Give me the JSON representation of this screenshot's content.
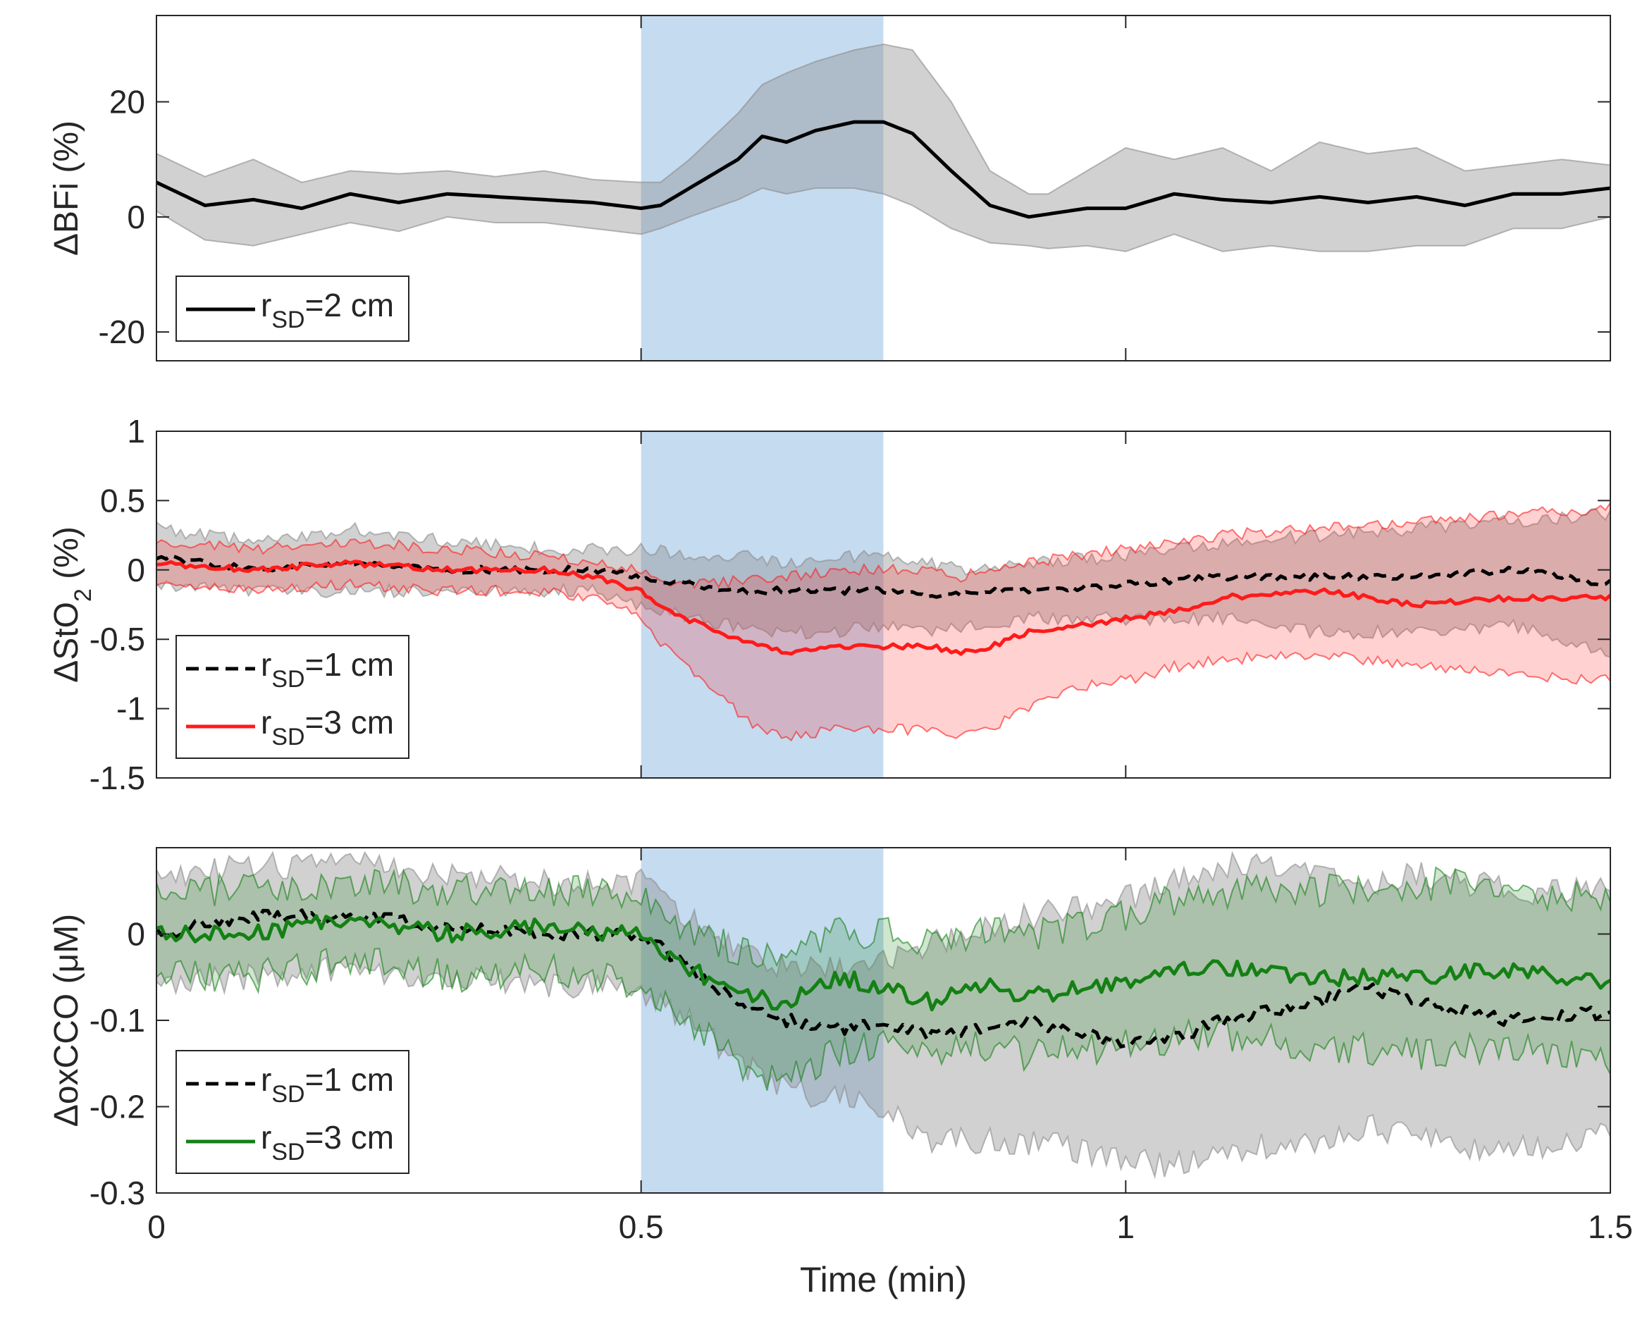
{
  "figure": {
    "xlabel": "Time (min)",
    "xticks": [
      "0",
      "0.5",
      "1",
      "1.5"
    ]
  },
  "colors": {
    "shade": "#c5dbf0",
    "black": "#000000",
    "red": "#ff1a1a",
    "green": "#148014",
    "gray_band": "#8c8c8c"
  },
  "chart_data": [
    {
      "type": "line",
      "id": "bfi",
      "ylabel": "ΔBFi (%)",
      "xlim": [
        0,
        1.5
      ],
      "ylim": [
        -25,
        35
      ],
      "yticks": [
        "20",
        "0",
        "-20"
      ],
      "ytick_values": [
        20,
        0,
        -20
      ],
      "stimulus_window": [
        0.5,
        0.75
      ],
      "legend": [
        {
          "label": "r",
          "sub": "SD",
          "suffix": "=2 cm",
          "style": "solid",
          "color": "black"
        }
      ],
      "series": [
        {
          "name": "r_SD=2 cm",
          "color": "black",
          "band_color": "gray_band",
          "style": "solid",
          "noise": 0,
          "seed": 1,
          "x": [
            0,
            0.05,
            0.1,
            0.15,
            0.2,
            0.25,
            0.3,
            0.35,
            0.4,
            0.45,
            0.5,
            0.52,
            0.55,
            0.6,
            0.625,
            0.65,
            0.68,
            0.72,
            0.75,
            0.78,
            0.82,
            0.86,
            0.9,
            0.92,
            0.96,
            1.0,
            1.05,
            1.1,
            1.15,
            1.2,
            1.25,
            1.3,
            1.35,
            1.4,
            1.45,
            1.5
          ],
          "mean": [
            6,
            2,
            3,
            1.5,
            4,
            2.5,
            4,
            3.5,
            3,
            2.5,
            1.5,
            2,
            5,
            10,
            14,
            13,
            15,
            16.5,
            16.5,
            14.5,
            8,
            2,
            0,
            0.5,
            1.5,
            1.5,
            4,
            3,
            2.5,
            3.5,
            2.5,
            3.5,
            2,
            4,
            4,
            5
          ],
          "upper": [
            11,
            7,
            10,
            6,
            8,
            7.5,
            8,
            7,
            8,
            6.5,
            6,
            6,
            10,
            18,
            23,
            25,
            27,
            29,
            30,
            29,
            20,
            8,
            4,
            4,
            8,
            12,
            10,
            12,
            8,
            13,
            11,
            12,
            8,
            9,
            10,
            9
          ],
          "lower": [
            1,
            -4,
            -5,
            -3,
            -1,
            -2.5,
            0,
            -1,
            -1,
            -2,
            -3,
            -2,
            0,
            3,
            5,
            4,
            5,
            5,
            4,
            2,
            -2,
            -4.5,
            -5,
            -5.5,
            -5,
            -6,
            -3,
            -6,
            -5,
            -6,
            -6,
            -5,
            -5,
            -2,
            -2,
            0
          ]
        }
      ]
    },
    {
      "type": "line",
      "id": "sto2",
      "ylabel": "ΔStO2 (%)",
      "xlim": [
        0,
        1.5
      ],
      "ylim": [
        -1.5,
        1
      ],
      "yticks": [
        "1",
        "0.5",
        "0",
        "-0.5",
        "-1",
        "-1.5"
      ],
      "ytick_values": [
        1,
        0.5,
        0,
        -0.5,
        -1,
        -1.5
      ],
      "stimulus_window": [
        0.5,
        0.75
      ],
      "legend": [
        {
          "label": "r",
          "sub": "SD",
          "suffix": "=1 cm",
          "style": "dashed",
          "color": "black"
        },
        {
          "label": "r",
          "sub": "SD",
          "suffix": "=3 cm",
          "style": "solid",
          "color": "red"
        }
      ],
      "series": [
        {
          "name": "r_SD=1 cm",
          "color": "black",
          "band_color": "gray_band",
          "style": "dashed",
          "noise": 0.025,
          "seed": 7,
          "x": [
            0,
            0.1,
            0.2,
            0.3,
            0.4,
            0.45,
            0.5,
            0.55,
            0.6,
            0.65,
            0.7,
            0.75,
            0.8,
            0.85,
            0.9,
            1.0,
            1.1,
            1.2,
            1.3,
            1.4,
            1.5
          ],
          "mean": [
            0.1,
            0.0,
            0.05,
            0.0,
            0.0,
            0.0,
            -0.05,
            -0.1,
            -0.15,
            -0.15,
            -0.15,
            -0.15,
            -0.2,
            -0.15,
            -0.15,
            -0.1,
            -0.05,
            -0.05,
            -0.05,
            0.0,
            -0.1
          ],
          "upper": [
            0.3,
            0.2,
            0.3,
            0.2,
            0.15,
            0.15,
            0.15,
            0.1,
            0.1,
            0.05,
            0.1,
            0.1,
            0.05,
            0.0,
            0.05,
            0.1,
            0.2,
            0.25,
            0.3,
            0.35,
            0.4
          ],
          "lower": [
            -0.1,
            -0.15,
            -0.15,
            -0.15,
            -0.15,
            -0.15,
            -0.25,
            -0.35,
            -0.4,
            -0.45,
            -0.45,
            -0.4,
            -0.45,
            -0.4,
            -0.35,
            -0.35,
            -0.35,
            -0.45,
            -0.45,
            -0.4,
            -0.6
          ]
        },
        {
          "name": "r_SD=3 cm",
          "color": "red",
          "band_color": "red",
          "style": "solid",
          "noise": 0.02,
          "seed": 3,
          "x": [
            0,
            0.1,
            0.2,
            0.3,
            0.4,
            0.45,
            0.5,
            0.53,
            0.58,
            0.62,
            0.65,
            0.7,
            0.75,
            0.8,
            0.83,
            0.86,
            0.9,
            0.95,
            1.0,
            1.05,
            1.1,
            1.2,
            1.3,
            1.4,
            1.5
          ],
          "mean": [
            0.05,
            0.0,
            0.05,
            0.0,
            0.0,
            -0.05,
            -0.15,
            -0.3,
            -0.45,
            -0.55,
            -0.6,
            -0.55,
            -0.55,
            -0.55,
            -0.6,
            -0.55,
            -0.45,
            -0.4,
            -0.35,
            -0.3,
            -0.2,
            -0.15,
            -0.25,
            -0.2,
            -0.2
          ],
          "upper": [
            0.2,
            0.15,
            0.2,
            0.15,
            0.1,
            0.05,
            0.0,
            -0.1,
            -0.1,
            -0.05,
            -0.05,
            0.0,
            0.0,
            0.0,
            -0.05,
            0.0,
            0.05,
            0.1,
            0.15,
            0.2,
            0.25,
            0.3,
            0.35,
            0.4,
            0.45
          ],
          "lower": [
            -0.1,
            -0.15,
            -0.1,
            -0.15,
            -0.15,
            -0.2,
            -0.35,
            -0.6,
            -0.9,
            -1.15,
            -1.2,
            -1.15,
            -1.15,
            -1.15,
            -1.2,
            -1.15,
            -1.0,
            -0.85,
            -0.8,
            -0.7,
            -0.65,
            -0.6,
            -0.7,
            -0.75,
            -0.8
          ]
        }
      ]
    },
    {
      "type": "line",
      "id": "oxcco",
      "ylabel": "ΔoxCCO (μM)",
      "xlim": [
        0,
        1.5
      ],
      "ylim": [
        -0.3,
        0.1
      ],
      "yticks": [
        "0",
        "-0.1",
        "-0.2",
        "-0.3"
      ],
      "ytick_values": [
        0,
        -0.1,
        -0.2,
        -0.3
      ],
      "stimulus_window": [
        0.5,
        0.75
      ],
      "legend": [
        {
          "label": "r",
          "sub": "SD",
          "suffix": "=1 cm",
          "style": "dashed",
          "color": "black"
        },
        {
          "label": "r",
          "sub": "SD",
          "suffix": "=3 cm",
          "style": "solid",
          "color": "green"
        }
      ],
      "series": [
        {
          "name": "r_SD=1 cm",
          "color": "black",
          "band_color": "gray_band",
          "style": "dashed",
          "noise": 0.008,
          "seed": 11,
          "x": [
            0,
            0.1,
            0.2,
            0.3,
            0.4,
            0.45,
            0.5,
            0.55,
            0.6,
            0.65,
            0.7,
            0.75,
            0.8,
            0.9,
            1.0,
            1.05,
            1.1,
            1.2,
            1.25,
            1.3,
            1.4,
            1.5
          ],
          "mean": [
            0.0,
            0.02,
            0.02,
            0.01,
            0.0,
            0.0,
            0.0,
            -0.04,
            -0.08,
            -0.1,
            -0.11,
            -0.1,
            -0.12,
            -0.1,
            -0.13,
            -0.12,
            -0.1,
            -0.08,
            -0.06,
            -0.08,
            -0.1,
            -0.09
          ],
          "upper": [
            0.06,
            0.08,
            0.08,
            0.07,
            0.06,
            0.06,
            0.06,
            0.02,
            -0.02,
            -0.04,
            -0.04,
            -0.03,
            -0.01,
            0.02,
            0.04,
            0.06,
            0.08,
            0.07,
            0.06,
            0.07,
            0.05,
            0.05
          ],
          "lower": [
            -0.06,
            -0.05,
            -0.04,
            -0.05,
            -0.06,
            -0.06,
            -0.07,
            -0.1,
            -0.15,
            -0.18,
            -0.19,
            -0.2,
            -0.24,
            -0.24,
            -0.26,
            -0.27,
            -0.25,
            -0.24,
            -0.22,
            -0.24,
            -0.25,
            -0.23
          ]
        },
        {
          "name": "r_SD=3 cm",
          "color": "green",
          "band_color": "green",
          "style": "solid",
          "noise": 0.01,
          "seed": 5,
          "x": [
            0,
            0.1,
            0.2,
            0.3,
            0.4,
            0.45,
            0.5,
            0.55,
            0.6,
            0.65,
            0.7,
            0.75,
            0.8,
            0.85,
            0.9,
            1.0,
            1.05,
            1.1,
            1.2,
            1.3,
            1.4,
            1.5
          ],
          "mean": [
            0.0,
            0.0,
            0.02,
            0.0,
            0.01,
            0.0,
            0.0,
            -0.04,
            -0.07,
            -0.08,
            -0.05,
            -0.06,
            -0.08,
            -0.06,
            -0.07,
            -0.06,
            -0.04,
            -0.04,
            -0.05,
            -0.05,
            -0.04,
            -0.06
          ],
          "upper": [
            0.05,
            0.05,
            0.06,
            0.05,
            0.05,
            0.05,
            0.05,
            0.0,
            -0.02,
            -0.02,
            0.0,
            0.0,
            -0.01,
            0.0,
            0.0,
            0.02,
            0.04,
            0.05,
            0.05,
            0.06,
            0.05,
            0.04
          ],
          "lower": [
            -0.05,
            -0.05,
            -0.03,
            -0.05,
            -0.04,
            -0.05,
            -0.06,
            -0.1,
            -0.15,
            -0.17,
            -0.14,
            -0.13,
            -0.14,
            -0.13,
            -0.14,
            -0.13,
            -0.12,
            -0.12,
            -0.13,
            -0.14,
            -0.13,
            -0.15
          ]
        }
      ]
    }
  ]
}
